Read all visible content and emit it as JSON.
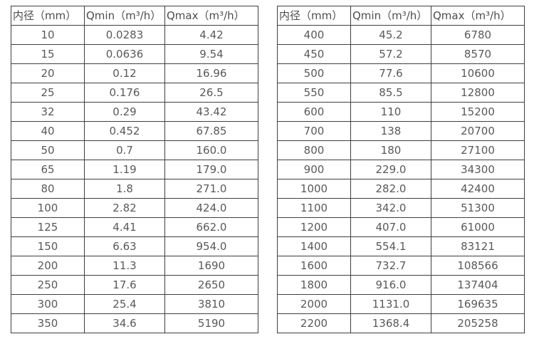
{
  "page": {
    "background_color": "#ffffff",
    "text_color": "#595959",
    "border_color": "#3f3f3f"
  },
  "tables": [
    {
      "name": "flow-rate-table-small-diameters",
      "headers": [
        "内径（mm）",
        "Qmin（m³/h）",
        "Qmax（m³/h）"
      ],
      "rows": [
        [
          "10",
          "0.0283",
          "4.42"
        ],
        [
          "15",
          "0.0636",
          "9.54"
        ],
        [
          "20",
          "0.12",
          "16.96"
        ],
        [
          "25",
          "0.176",
          "26.5"
        ],
        [
          "32",
          "0.29",
          "43.42"
        ],
        [
          "40",
          "0.452",
          "67.85"
        ],
        [
          "50",
          "0.7",
          "160.0"
        ],
        [
          "65",
          "1.19",
          "179.0"
        ],
        [
          "80",
          "1.8",
          "271.0"
        ],
        [
          "100",
          "2.82",
          "424.0"
        ],
        [
          "125",
          "4.41",
          "662.0"
        ],
        [
          "150",
          "6.63",
          "954.0"
        ],
        [
          "200",
          "11.3",
          "1690"
        ],
        [
          "250",
          "17.6",
          "2650"
        ],
        [
          "300",
          "25.4",
          "3810"
        ],
        [
          "350",
          "34.6",
          "5190"
        ]
      ]
    },
    {
      "name": "flow-rate-table-large-diameters",
      "headers": [
        "内径（mm）",
        "Qmin（m³/h）",
        "Qmax（m³/h）"
      ],
      "rows": [
        [
          "400",
          "45.2",
          "6780"
        ],
        [
          "450",
          "57.2",
          "8570"
        ],
        [
          "500",
          "77.6",
          "10600"
        ],
        [
          "550",
          "85.5",
          "12800"
        ],
        [
          "600",
          "110",
          "15200"
        ],
        [
          "700",
          "138",
          "20700"
        ],
        [
          "800",
          "180",
          "27100"
        ],
        [
          "900",
          "229.0",
          "34300"
        ],
        [
          "1000",
          "282.0",
          "42400"
        ],
        [
          "1100",
          "342.0",
          "51300"
        ],
        [
          "1200",
          "407.0",
          "61000"
        ],
        [
          "1400",
          "554.1",
          "83121"
        ],
        [
          "1600",
          "732.7",
          "108566"
        ],
        [
          "1800",
          "916.0",
          "137404"
        ],
        [
          "2000",
          "1131.0",
          "169635"
        ],
        [
          "2200",
          "1368.4",
          "205258"
        ]
      ]
    }
  ]
}
